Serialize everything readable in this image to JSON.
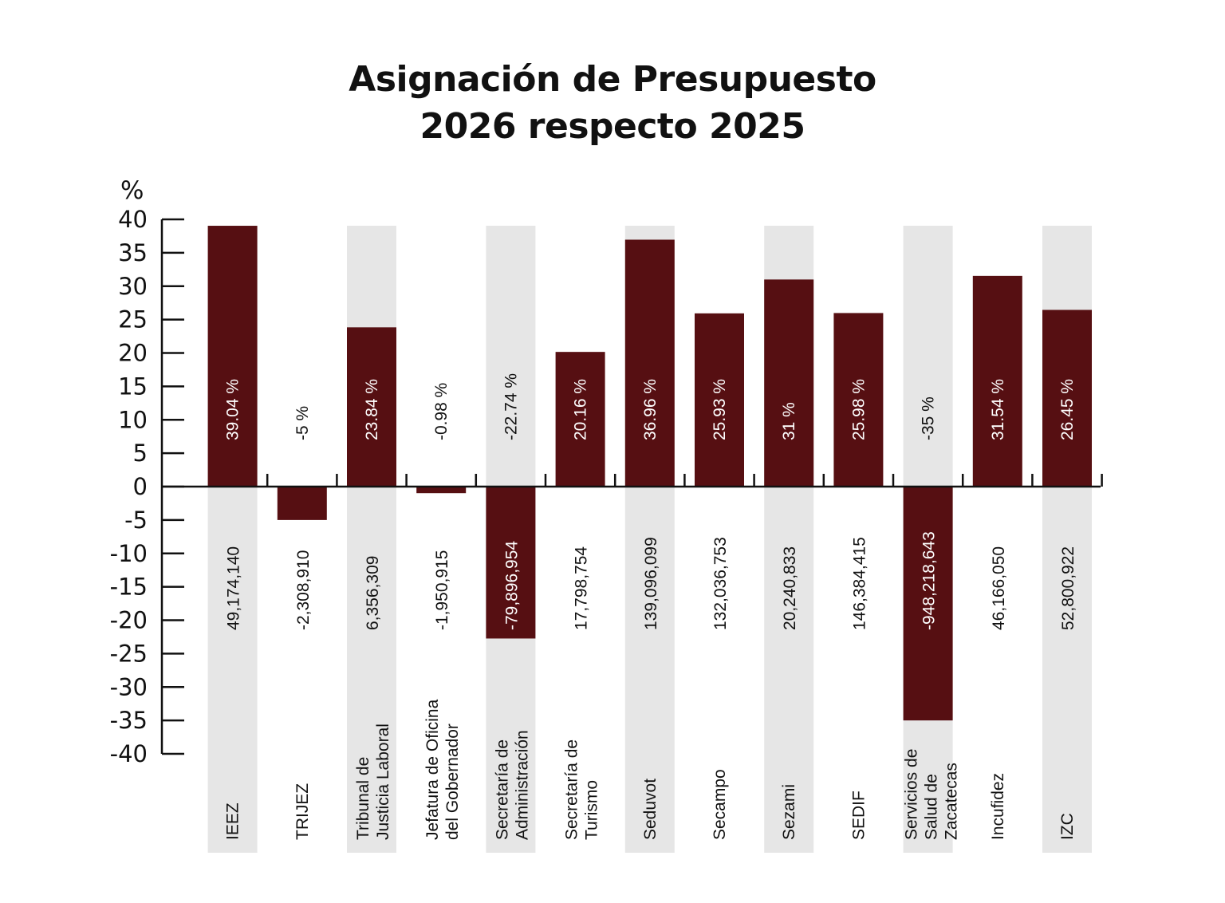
{
  "chart_data": {
    "type": "bar",
    "title": [
      "Asignación de Presupuesto",
      "2026 respecto 2025"
    ],
    "ylabel": "%",
    "ylim": [
      -40,
      40
    ],
    "yticks": [
      40,
      35,
      30,
      25,
      20,
      15,
      10,
      5,
      0,
      -5,
      -10,
      -15,
      -20,
      -25,
      -30,
      -35,
      -40
    ],
    "categories": [
      [
        "IEEZ"
      ],
      [
        "TRIJEZ"
      ],
      [
        "Tribunal de",
        "Justicia Laboral"
      ],
      [
        "Jefatura de Oficina",
        "del Gobernador"
      ],
      [
        "Secretaría de",
        "Administración"
      ],
      [
        "Secretaría de",
        "Turismo"
      ],
      [
        "Seduvot"
      ],
      [
        "Secampo"
      ],
      [
        "Sezami"
      ],
      [
        "SEDIF"
      ],
      [
        "Servicios de",
        "Salud de",
        "Zacatecas"
      ],
      [
        "Incufidez"
      ],
      [
        "IZC"
      ]
    ],
    "values": [
      39.04,
      -5,
      23.84,
      -0.98,
      -22.74,
      20.16,
      36.96,
      25.93,
      31,
      25.98,
      -35,
      31.54,
      26.45
    ],
    "percent_labels": [
      "39.04 %",
      "-5 %",
      "23.84 %",
      "-0.98 %",
      "-22.74 %",
      "20.16 %",
      "36.96 %",
      "25.93 %",
      "31 %",
      "25.98 %",
      "-35 %",
      "31.54 %",
      "26.45 %"
    ],
    "amount_labels": [
      "49,174,140",
      "-2,308,910",
      "6,356,309",
      "-1,950,915",
      "-79,896,954",
      "17,798,754",
      "139,096,099",
      "132,036,753",
      "20,240,833",
      "146,384,415",
      "-948,218,643",
      "46,166,050",
      "52,800,922"
    ],
    "grid": false,
    "legend": "none",
    "colors": {
      "bar": "#560f12",
      "band": "#e6e6e6",
      "axis": "#111111"
    }
  }
}
